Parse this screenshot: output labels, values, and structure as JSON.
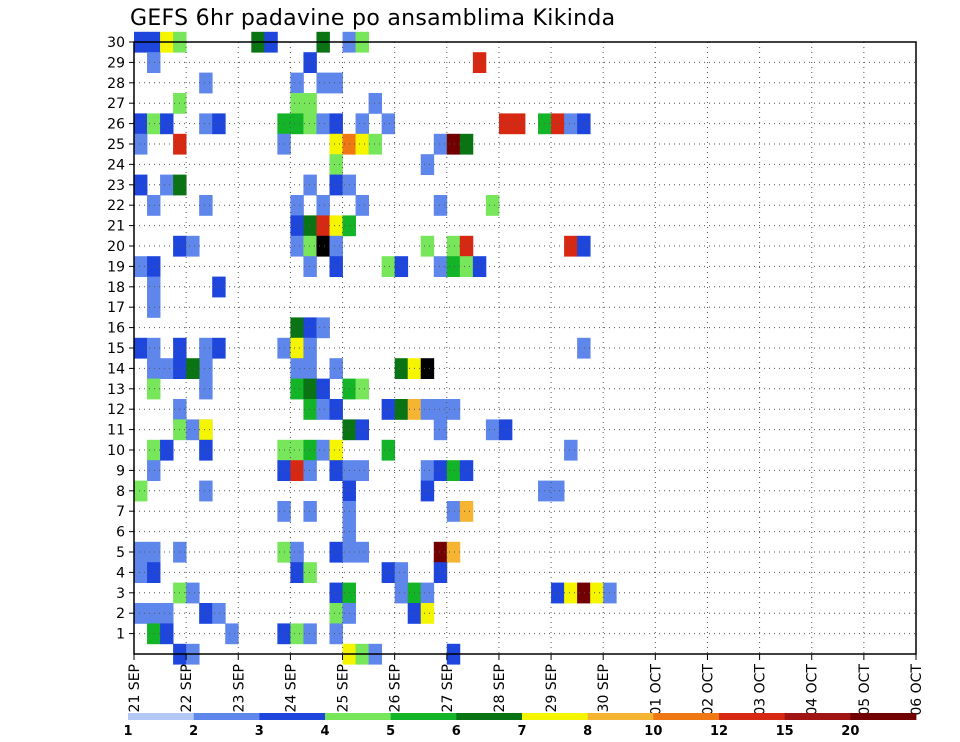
{
  "title": "GEFS 6hr padavine po ansamblima Kikinda",
  "chart_data": {
    "type": "heatmap",
    "title": "GEFS 6hr padavine po ansamblima Kikinda",
    "xlabel": "",
    "ylabel": "",
    "x_tick_labels": [
      "21 SEP",
      "22 SEP",
      "23 SEP",
      "24 SEP",
      "25 SEP",
      "26 SEP",
      "27 SEP",
      "28 SEP",
      "29 SEP",
      "30 SEP",
      "01 OCT",
      "02 OCT",
      "03 OCT",
      "04 OCT",
      "05 OCT",
      "06 OCT"
    ],
    "y_tick_labels": [
      "1",
      "2",
      "3",
      "4",
      "5",
      "6",
      "7",
      "8",
      "9",
      "10",
      "11",
      "12",
      "13",
      "14",
      "15",
      "16",
      "17",
      "18",
      "19",
      "20",
      "21",
      "22",
      "23",
      "24",
      "25",
      "26",
      "27",
      "28",
      "29",
      "30"
    ],
    "x_units": "6-hour steps from 21 SEP 00Z (4 steps per day)",
    "n_steps": 61,
    "ylim": [
      0,
      30
    ],
    "grid": true,
    "color_levels": [
      1,
      2,
      3,
      4,
      5,
      6,
      7,
      8,
      10,
      12,
      15,
      20
    ],
    "colorbar_tick_labels": [
      "1",
      "2",
      "3",
      "4",
      "5",
      "6",
      "7",
      "8",
      "10",
      "12",
      "15",
      "20"
    ],
    "colors": [
      "#b4c8f5",
      "#5f87eb",
      "#1e46dc",
      "#78e65a",
      "#14b428",
      "#0a7314",
      "#f5f500",
      "#f5b432",
      "#f07814",
      "#d72814",
      "#a01414",
      "#730000"
    ],
    "cells": [
      [
        0,
        30,
        2
      ],
      [
        1,
        30,
        2
      ],
      [
        2,
        30,
        6
      ],
      [
        3,
        30,
        3
      ],
      [
        9,
        30,
        5
      ],
      [
        10,
        30,
        2
      ],
      [
        14,
        30,
        5
      ],
      [
        16,
        30,
        1
      ],
      [
        17,
        30,
        3
      ],
      [
        1,
        29,
        1
      ],
      [
        13,
        29,
        2
      ],
      [
        26,
        29,
        9
      ],
      [
        5,
        28,
        1
      ],
      [
        12,
        28,
        1
      ],
      [
        14,
        28,
        1
      ],
      [
        15,
        28,
        1
      ],
      [
        3,
        27,
        3
      ],
      [
        12,
        27,
        3
      ],
      [
        13,
        27,
        3
      ],
      [
        18,
        27,
        1
      ],
      [
        0,
        26,
        2
      ],
      [
        1,
        26,
        3
      ],
      [
        2,
        26,
        2
      ],
      [
        5,
        26,
        1
      ],
      [
        6,
        26,
        2
      ],
      [
        11,
        26,
        4
      ],
      [
        12,
        26,
        4
      ],
      [
        13,
        26,
        3
      ],
      [
        14,
        26,
        1
      ],
      [
        15,
        26,
        2
      ],
      [
        17,
        26,
        1
      ],
      [
        19,
        26,
        1
      ],
      [
        28,
        26,
        9
      ],
      [
        29,
        26,
        9
      ],
      [
        31,
        26,
        4
      ],
      [
        32,
        26,
        9
      ],
      [
        33,
        26,
        1
      ],
      [
        34,
        26,
        2
      ],
      [
        0,
        25,
        1
      ],
      [
        3,
        25,
        9
      ],
      [
        11,
        25,
        1
      ],
      [
        15,
        25,
        6
      ],
      [
        16,
        25,
        8
      ],
      [
        17,
        25,
        6
      ],
      [
        18,
        25,
        3
      ],
      [
        23,
        25,
        1
      ],
      [
        24,
        25,
        11
      ],
      [
        25,
        25,
        5
      ],
      [
        15,
        24,
        3
      ],
      [
        22,
        24,
        1
      ],
      [
        0,
        23,
        2
      ],
      [
        2,
        23,
        1
      ],
      [
        3,
        23,
        5
      ],
      [
        13,
        23,
        1
      ],
      [
        15,
        23,
        2
      ],
      [
        16,
        23,
        1
      ],
      [
        1,
        22,
        1
      ],
      [
        5,
        22,
        1
      ],
      [
        12,
        22,
        1
      ],
      [
        14,
        22,
        1
      ],
      [
        17,
        22,
        1
      ],
      [
        23,
        22,
        1
      ],
      [
        27,
        22,
        3
      ],
      [
        12,
        21,
        2
      ],
      [
        13,
        21,
        5
      ],
      [
        14,
        21,
        9
      ],
      [
        15,
        21,
        6
      ],
      [
        16,
        21,
        4
      ],
      [
        3,
        20,
        2
      ],
      [
        4,
        20,
        1
      ],
      [
        12,
        20,
        1
      ],
      [
        13,
        20,
        3
      ],
      [
        14,
        20,
        12
      ],
      [
        15,
        20,
        1
      ],
      [
        22,
        20,
        3
      ],
      [
        24,
        20,
        3
      ],
      [
        25,
        20,
        9
      ],
      [
        33,
        20,
        9
      ],
      [
        34,
        20,
        2
      ],
      [
        0,
        19,
        1
      ],
      [
        1,
        19,
        2
      ],
      [
        13,
        19,
        1
      ],
      [
        15,
        19,
        2
      ],
      [
        19,
        19,
        3
      ],
      [
        20,
        19,
        2
      ],
      [
        23,
        19,
        1
      ],
      [
        24,
        19,
        4
      ],
      [
        25,
        19,
        3
      ],
      [
        26,
        19,
        2
      ],
      [
        1,
        18,
        1
      ],
      [
        6,
        18,
        2
      ],
      [
        1,
        17,
        1
      ],
      [
        12,
        16,
        5
      ],
      [
        13,
        16,
        2
      ],
      [
        14,
        16,
        1
      ],
      [
        0,
        15,
        2
      ],
      [
        1,
        15,
        1
      ],
      [
        5,
        15,
        1
      ],
      [
        6,
        15,
        2
      ],
      [
        3,
        15,
        2
      ],
      [
        11,
        15,
        1
      ],
      [
        12,
        15,
        6
      ],
      [
        13,
        15,
        1
      ],
      [
        34,
        15,
        1
      ],
      [
        1,
        14,
        1
      ],
      [
        5,
        14,
        1
      ],
      [
        2,
        14,
        1
      ],
      [
        3,
        14,
        2
      ],
      [
        4,
        14,
        5
      ],
      [
        12,
        14,
        1
      ],
      [
        13,
        14,
        1
      ],
      [
        15,
        14,
        1
      ],
      [
        20,
        14,
        5
      ],
      [
        21,
        14,
        6
      ],
      [
        22,
        14,
        12
      ],
      [
        1,
        13,
        3
      ],
      [
        5,
        13,
        1
      ],
      [
        12,
        13,
        4
      ],
      [
        13,
        13,
        5
      ],
      [
        14,
        13,
        2
      ],
      [
        16,
        13,
        4
      ],
      [
        17,
        13,
        3
      ],
      [
        3,
        12,
        1
      ],
      [
        13,
        12,
        4
      ],
      [
        14,
        12,
        1
      ],
      [
        15,
        12,
        2
      ],
      [
        19,
        12,
        2
      ],
      [
        20,
        12,
        5
      ],
      [
        21,
        12,
        7
      ],
      [
        22,
        12,
        1
      ],
      [
        23,
        12,
        1
      ],
      [
        24,
        12,
        1
      ],
      [
        5,
        11,
        1
      ],
      [
        3,
        11,
        3
      ],
      [
        4,
        11,
        1
      ],
      [
        5,
        11,
        6
      ],
      [
        16,
        11,
        5
      ],
      [
        17,
        11,
        2
      ],
      [
        23,
        11,
        1
      ],
      [
        27,
        11,
        1
      ],
      [
        28,
        11,
        2
      ],
      [
        1,
        10,
        3
      ],
      [
        2,
        10,
        2
      ],
      [
        5,
        10,
        2
      ],
      [
        11,
        10,
        3
      ],
      [
        12,
        10,
        3
      ],
      [
        13,
        10,
        4
      ],
      [
        14,
        10,
        1
      ],
      [
        15,
        10,
        6
      ],
      [
        19,
        10,
        4
      ],
      [
        33,
        10,
        1
      ],
      [
        1,
        9,
        1
      ],
      [
        11,
        9,
        2
      ],
      [
        12,
        9,
        9
      ],
      [
        13,
        9,
        1
      ],
      [
        15,
        9,
        2
      ],
      [
        16,
        9,
        1
      ],
      [
        17,
        9,
        1
      ],
      [
        22,
        9,
        1
      ],
      [
        23,
        9,
        2
      ],
      [
        24,
        9,
        4
      ],
      [
        25,
        9,
        2
      ],
      [
        0,
        8,
        3
      ],
      [
        5,
        8,
        1
      ],
      [
        16,
        8,
        2
      ],
      [
        22,
        8,
        2
      ],
      [
        31,
        8,
        1
      ],
      [
        32,
        8,
        1
      ],
      [
        11,
        7,
        1
      ],
      [
        13,
        7,
        1
      ],
      [
        16,
        7,
        1
      ],
      [
        24,
        7,
        1
      ],
      [
        25,
        7,
        7
      ],
      [
        16,
        6,
        1
      ],
      [
        0,
        5,
        1
      ],
      [
        1,
        5,
        1
      ],
      [
        3,
        5,
        1
      ],
      [
        11,
        5,
        3
      ],
      [
        12,
        5,
        1
      ],
      [
        15,
        5,
        2
      ],
      [
        16,
        5,
        1
      ],
      [
        17,
        5,
        1
      ],
      [
        23,
        5,
        11
      ],
      [
        24,
        5,
        7
      ],
      [
        0,
        4,
        1
      ],
      [
        1,
        4,
        2
      ],
      [
        12,
        4,
        2
      ],
      [
        13,
        4,
        3
      ],
      [
        19,
        4,
        2
      ],
      [
        20,
        4,
        1
      ],
      [
        23,
        4,
        2
      ],
      [
        3,
        3,
        3
      ],
      [
        4,
        3,
        1
      ],
      [
        15,
        3,
        2
      ],
      [
        16,
        3,
        4
      ],
      [
        20,
        3,
        1
      ],
      [
        21,
        3,
        4
      ],
      [
        22,
        3,
        1
      ],
      [
        32,
        3,
        2
      ],
      [
        33,
        3,
        6
      ],
      [
        34,
        3,
        11
      ],
      [
        35,
        3,
        6
      ],
      [
        36,
        3,
        1
      ],
      [
        0,
        2,
        1
      ],
      [
        1,
        2,
        1
      ],
      [
        2,
        2,
        1
      ],
      [
        5,
        2,
        2
      ],
      [
        6,
        2,
        1
      ],
      [
        15,
        2,
        3
      ],
      [
        16,
        2,
        1
      ],
      [
        21,
        2,
        2
      ],
      [
        22,
        2,
        6
      ],
      [
        1,
        1,
        4
      ],
      [
        2,
        1,
        2
      ],
      [
        7,
        1,
        1
      ],
      [
        11,
        1,
        2
      ],
      [
        12,
        1,
        3
      ],
      [
        13,
        1,
        1
      ],
      [
        15,
        1,
        1
      ],
      [
        3,
        0,
        2
      ],
      [
        4,
        0,
        1
      ],
      [
        16,
        0,
        6
      ],
      [
        17,
        0,
        3
      ],
      [
        18,
        0,
        1
      ],
      [
        24,
        0,
        2
      ]
    ]
  }
}
